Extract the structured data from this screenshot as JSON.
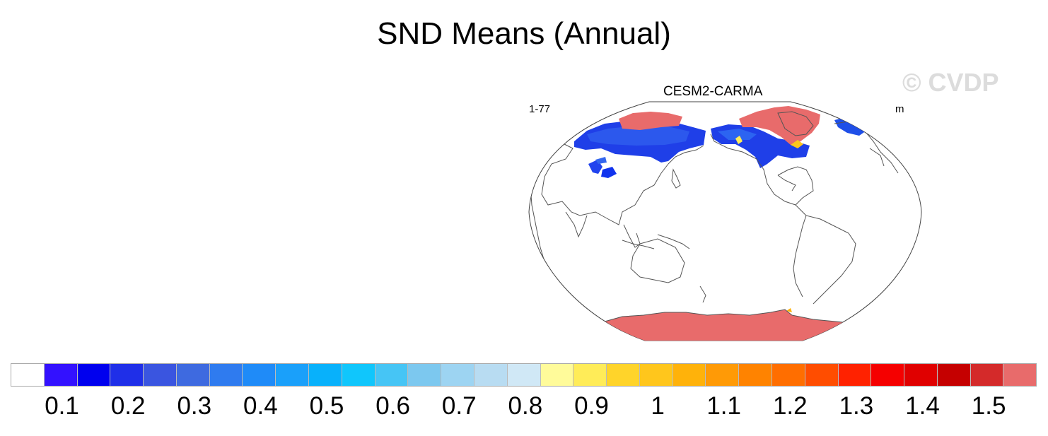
{
  "figure": {
    "title": "SND Means (Annual)",
    "watermark": "© CVDP"
  },
  "panel": {
    "title": "CESM2-CARMA",
    "left_label": "1-77",
    "right_label": "m"
  },
  "colorbar": {
    "colors": [
      "#ffffff",
      "#3311ff",
      "#0000ee",
      "#1f2fe8",
      "#3a55e0",
      "#3e6ae0",
      "#2f7bef",
      "#1f8bf8",
      "#1aa0fa",
      "#08b1fb",
      "#10c6fc",
      "#46c5f5",
      "#7cc8ef",
      "#9dd4f2",
      "#b8dcf2",
      "#d0e8f6",
      "#fffb9a",
      "#ffec58",
      "#ffd42a",
      "#ffc61c",
      "#ffb20a",
      "#ff9a06",
      "#ff8300",
      "#ff6e00",
      "#ff4d00",
      "#ff2200",
      "#f50000",
      "#e00000",
      "#c50000",
      "#d42a2a",
      "#e86b6b"
    ],
    "labels": [
      "0.1",
      "0.2",
      "0.3",
      "0.4",
      "0.5",
      "0.6",
      "0.7",
      "0.8",
      "0.9",
      "1",
      "1.1",
      "1.2",
      "1.3",
      "1.4",
      "1.5"
    ]
  }
}
